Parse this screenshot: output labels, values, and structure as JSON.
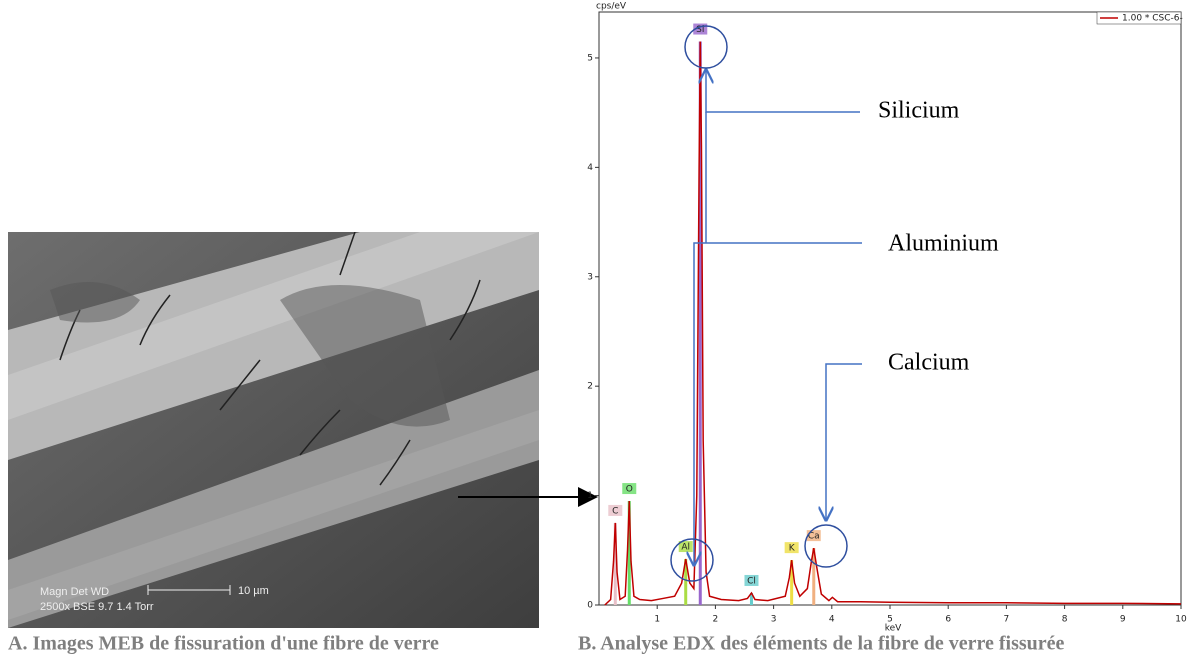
{
  "chart_data": {
    "type": "line",
    "y_label": "cps/eV",
    "x_label": "keV",
    "xlim": [
      0,
      10
    ],
    "ylim": [
      0,
      5.42
    ],
    "xticks": [
      1,
      2,
      3,
      4,
      5,
      6,
      7,
      8,
      9,
      10
    ],
    "yticks": [
      0,
      1,
      2,
      3,
      4,
      5
    ],
    "series": [
      {
        "name": "1.00 * CSC-6-",
        "color": "#c00000",
        "x": [
          0.1,
          0.2,
          0.25,
          0.28,
          0.31,
          0.36,
          0.45,
          0.49,
          0.52,
          0.55,
          0.6,
          0.7,
          0.9,
          1.1,
          1.3,
          1.42,
          1.49,
          1.56,
          1.63,
          1.68,
          1.72,
          1.74,
          1.76,
          1.79,
          1.84,
          1.9,
          2.1,
          2.4,
          2.55,
          2.62,
          2.68,
          2.9,
          3.2,
          3.27,
          3.31,
          3.36,
          3.45,
          3.58,
          3.65,
          3.69,
          3.74,
          3.82,
          3.95,
          4.01,
          4.1,
          4.5,
          5,
          6,
          7,
          8,
          9,
          10
        ],
        "values": [
          0,
          0.05,
          0.4,
          0.75,
          0.3,
          0.05,
          0.08,
          0.5,
          0.95,
          0.4,
          0.08,
          0.05,
          0.04,
          0.06,
          0.08,
          0.2,
          0.42,
          0.2,
          0.15,
          1.0,
          4.0,
          5.15,
          4.2,
          1.5,
          0.3,
          0.08,
          0.05,
          0.04,
          0.06,
          0.11,
          0.05,
          0.04,
          0.08,
          0.25,
          0.41,
          0.2,
          0.08,
          0.15,
          0.4,
          0.52,
          0.35,
          0.1,
          0.04,
          0.07,
          0.03,
          0.03,
          0.025,
          0.02,
          0.02,
          0.015,
          0.015,
          0.01
        ]
      }
    ],
    "elements": [
      {
        "label": "C",
        "energy": 0.28,
        "height": 0.75,
        "color": "#e8c0c8"
      },
      {
        "label": "O",
        "energy": 0.52,
        "height": 0.95,
        "color": "#66dd66"
      },
      {
        "label": "Al",
        "energy": 1.49,
        "height": 0.42,
        "color": "#aadd44"
      },
      {
        "label": "Si",
        "energy": 1.74,
        "height": 5.15,
        "color": "#9966cc"
      },
      {
        "label": "Cl",
        "energy": 2.62,
        "height": 0.11,
        "color": "#66cccc"
      },
      {
        "label": "K",
        "energy": 3.31,
        "height": 0.41,
        "color": "#eedd44"
      },
      {
        "label": "Ca",
        "energy": 3.69,
        "height": 0.52,
        "color": "#f0b080"
      }
    ],
    "annotations": [
      "Silicium",
      "Aluminium",
      "Calcium"
    ]
  },
  "sem_image": {
    "line1": "Magn   Det  WD",
    "line2": "2500x   BSE 9.7     1.4 Torr",
    "scale": "10 µm"
  },
  "captions": [
    "A. Images MEB de fissuration d'une fibre de verre",
    "B. Analyse EDX des éléments de la fibre de verre fissurée"
  ]
}
